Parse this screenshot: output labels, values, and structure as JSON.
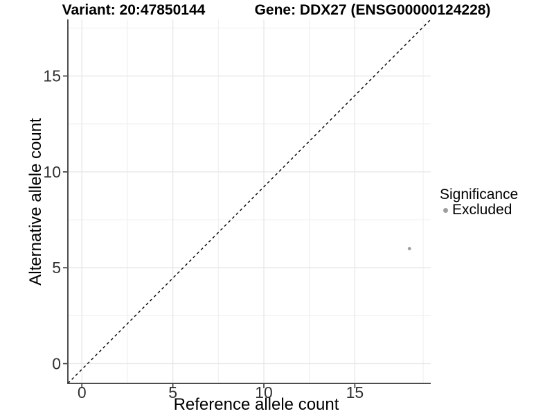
{
  "titles": {
    "left": "Variant: 20:47850144",
    "right": "Gene: DDX27 (ENSG00000124228)"
  },
  "axes": {
    "x_label": "Reference allele count",
    "y_label": "Alternative allele count"
  },
  "legend": {
    "title": "Significance",
    "items": [
      {
        "label": "Excluded",
        "color": "#9e9e9e"
      }
    ]
  },
  "colors": {
    "background": "#ffffff",
    "grid_major": "#e6e6e6",
    "grid_minor": "#f0f0f0",
    "axis_line": "#4d4d4d",
    "tick_mark": "#333333",
    "tick_text": "#303030",
    "identity_line": "#000000",
    "point": "#9e9e9e"
  },
  "chart_data": {
    "type": "scatter",
    "title": "Variant: 20:47850144 / Gene: DDX27 (ENSG00000124228)",
    "xlabel": "Reference allele count",
    "ylabel": "Alternative allele count",
    "xlim": [
      -0.77,
      19.17
    ],
    "ylim": [
      -1.03,
      17.95
    ],
    "x_breaks": [
      0,
      5,
      10,
      15
    ],
    "y_breaks": [
      0,
      5,
      10,
      15
    ],
    "x_minor_breaks": [
      2.5,
      7.5,
      12.5,
      18.75
    ],
    "y_minor_breaks": [
      2.5,
      7.5,
      12.5,
      17.5
    ],
    "grid": true,
    "legend_position": "right",
    "reference_line": {
      "type": "identity",
      "slope": 1,
      "intercept": 0,
      "style": "dashed"
    },
    "series": [
      {
        "name": "Excluded",
        "color": "#9e9e9e",
        "points": [
          {
            "x": 18,
            "y": 6
          }
        ]
      }
    ]
  }
}
